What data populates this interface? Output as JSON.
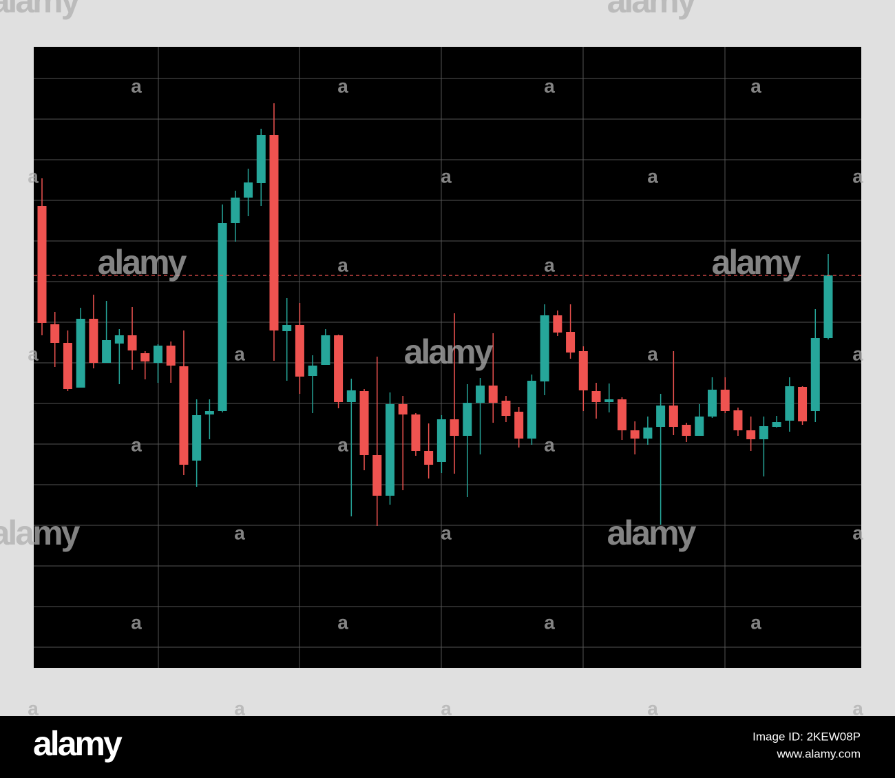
{
  "chart_data": {
    "type": "candlestick",
    "up_color": "#26a69a",
    "down_color": "#ef5350",
    "ylim": [
      0,
      902
    ],
    "yticks": [
      30,
      89,
      148,
      207,
      266,
      325,
      384,
      443,
      502,
      561,
      620,
      679,
      738,
      797,
      856
    ],
    "grid": true,
    "price_line": 570,
    "open": [
      671,
      499,
      472,
      407,
      507,
      443,
      471,
      483,
      457,
      443,
      468,
      438,
      301,
      368,
      373,
      646,
      683,
      704,
      774,
      489,
      498,
      424,
      440,
      483,
      386,
      402,
      309,
      250,
      383,
      368,
      315,
      299,
      361,
      337,
      385,
      410,
      388,
      372,
      333,
      416,
      512,
      488,
      460,
      402,
      386,
      390,
      345,
      333,
      350,
      381,
      353,
      337,
      365,
      404,
      374,
      345,
      332,
      350,
      359,
      408,
      373,
      479
    ],
    "high": [
      711,
      517,
      490,
      523,
      542,
      533,
      492,
      524,
      460,
      470,
      474,
      490,
      390,
      390,
      673,
      693,
      725,
      783,
      820,
      537,
      530,
      454,
      492,
      484,
      420,
      405,
      452,
      400,
      395,
      370,
      355,
      367,
      515,
      412,
      421,
      486,
      395,
      379,
      426,
      528,
      519,
      528,
      467,
      414,
      413,
      393,
      358,
      365,
      398,
      460,
      356,
      383,
      422,
      422,
      378,
      365,
      365,
      366,
      422,
      409,
      521,
      601
    ],
    "low": [
      483,
      437,
      402,
      407,
      435,
      443,
      412,
      433,
      419,
      414,
      414,
      280,
      263,
      332,
      371,
      619,
      656,
      671,
      446,
      417,
      398,
      370,
      440,
      377,
      220,
      287,
      206,
      237,
      258,
      308,
      275,
      283,
      282,
      248,
      310,
      356,
      357,
      320,
      324,
      396,
      482,
      449,
      373,
      362,
      371,
      331,
      310,
      324,
      208,
      338,
      328,
      337,
      363,
      370,
      337,
      315,
      278,
      349,
      343,
      353,
      357,
      477
    ],
    "close": [
      501,
      472,
      405,
      507,
      443,
      476,
      483,
      461,
      445,
      468,
      439,
      295,
      367,
      373,
      646,
      683,
      705,
      774,
      490,
      498,
      423,
      439,
      483,
      386,
      403,
      309,
      250,
      383,
      368,
      315,
      295,
      361,
      337,
      385,
      410,
      385,
      366,
      333,
      417,
      512,
      487,
      458,
      403,
      386,
      390,
      345,
      333,
      349,
      381,
      350,
      337,
      365,
      404,
      373,
      345,
      332,
      351,
      357,
      409,
      358,
      479,
      570
    ]
  },
  "watermark": "alamy",
  "watermark_mark": "a",
  "footer": {
    "logo": "alamy",
    "image_id": "Image ID: 2KEW08P",
    "url": "www.alamy.com"
  }
}
